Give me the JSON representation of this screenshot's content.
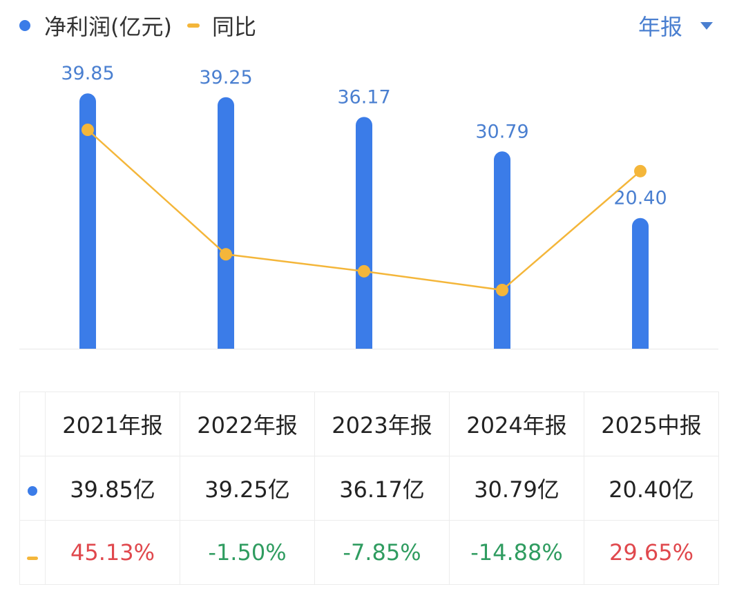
{
  "legend": {
    "profit_label": "净利润(亿元)",
    "yoy_label": "同比",
    "profit_icon": "dot",
    "yoy_icon": "dash"
  },
  "period_selector": {
    "label": "年报",
    "icon": "caret-down"
  },
  "colors": {
    "bar": "#3b7ce8",
    "line": "#f4b63a",
    "positive": "#e0484d",
    "negative": "#2f9c60",
    "accent": "#4a7fd0"
  },
  "chart_data": {
    "type": "bar+line",
    "categories": [
      "2021年报",
      "2022年报",
      "2023年报",
      "2024年报",
      "2025中报"
    ],
    "series": [
      {
        "name": "净利润(亿元)",
        "type": "bar",
        "values": [
          39.85,
          39.25,
          36.17,
          30.79,
          20.4
        ],
        "labels": [
          "39.85",
          "39.25",
          "36.17",
          "30.79",
          "20.40"
        ]
      },
      {
        "name": "同比",
        "type": "line",
        "values": [
          45.13,
          -1.5,
          -7.85,
          -14.88,
          29.65
        ]
      }
    ],
    "bar_ylim": [
      0,
      40
    ],
    "grid": false,
    "legend": "top-left"
  },
  "table": {
    "headers": [
      "2021年报",
      "2022年报",
      "2023年报",
      "2024年报",
      "2025中报"
    ],
    "profit_row": [
      "39.85亿",
      "39.25亿",
      "36.17亿",
      "30.79亿",
      "20.40亿"
    ],
    "yoy_row": [
      "45.13%",
      "-1.50%",
      "-7.85%",
      "-14.88%",
      "29.65%"
    ]
  }
}
